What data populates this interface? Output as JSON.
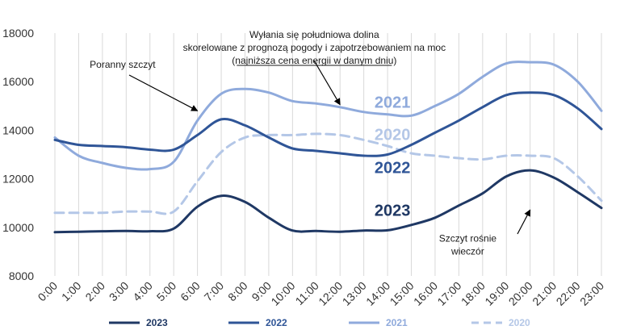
{
  "chart_data": {
    "type": "line",
    "x": [
      "0:00",
      "1:00",
      "2:00",
      "3:00",
      "4:00",
      "5:00",
      "6:00",
      "7:00",
      "8:00",
      "9:00",
      "10:00",
      "11:00",
      "12:00",
      "13:00",
      "14:00",
      "15:00",
      "16:00",
      "17:00",
      "18:00",
      "19:00",
      "20:00",
      "21:00",
      "22:00",
      "23:00"
    ],
    "ylim": [
      8000,
      18000
    ],
    "yticks": [
      8000,
      10000,
      12000,
      14000,
      16000,
      18000
    ],
    "ytick_labels": [
      "8000",
      "10000",
      "12000",
      "14000",
      "16000",
      "18000"
    ],
    "grid": "vertical",
    "legend": "bottom",
    "series": [
      {
        "name": "2023",
        "color": "#1f3864",
        "dash": false,
        "width": 3,
        "values": [
          9800,
          9820,
          9840,
          9850,
          9840,
          9950,
          10850,
          11300,
          11050,
          10400,
          9870,
          9850,
          9820,
          9870,
          9880,
          10100,
          10400,
          10900,
          11400,
          12100,
          12350,
          12050,
          11450,
          10800
        ]
      },
      {
        "name": "2022",
        "color": "#2f5597",
        "dash": false,
        "width": 3,
        "values": [
          13600,
          13400,
          13350,
          13300,
          13200,
          13200,
          13800,
          14450,
          14200,
          13700,
          13250,
          13150,
          13050,
          12950,
          13000,
          13400,
          13900,
          14400,
          14950,
          15450,
          15550,
          15450,
          14900,
          14050
        ]
      },
      {
        "name": "2021",
        "color": "#8faadc",
        "dash": false,
        "width": 3,
        "values": [
          13700,
          12950,
          12650,
          12450,
          12400,
          12700,
          14400,
          15500,
          15700,
          15550,
          15200,
          15100,
          14950,
          14750,
          14650,
          14600,
          15000,
          15500,
          16200,
          16750,
          16800,
          16700,
          16000,
          14800
        ]
      },
      {
        "name": "2020",
        "color": "#b4c7e7",
        "dash": true,
        "width": 3,
        "values": [
          10600,
          10600,
          10600,
          10650,
          10650,
          10650,
          11900,
          13100,
          13700,
          13800,
          13800,
          13850,
          13800,
          13600,
          13350,
          13050,
          12950,
          12850,
          12800,
          12950,
          12950,
          12850,
          12100,
          11100
        ]
      }
    ],
    "series_labels": [
      {
        "text": "2021",
        "color": "#8faadc",
        "x": "14:00",
        "y": 14920
      },
      {
        "text": "2020",
        "color": "#b4c7e7",
        "x": "14:00",
        "y": 13600
      },
      {
        "text": "2022",
        "color": "#2f5597",
        "x": "14:00",
        "y": 12230
      },
      {
        "text": "2023",
        "color": "#1f3864",
        "x": "14:00",
        "y": 10480
      }
    ],
    "annotations": [
      {
        "lines": [
          "Wyłania się południowa dolina",
          "skorelowane z prognozą pogody i zapotrzebowaniem na moc",
          "(najniższa cena energii w danym dniu)"
        ],
        "underline_last_inner": true,
        "text_x": "10:00",
        "text_y": 17400,
        "arrow_to": [
          "12:00",
          "15050"
        ]
      },
      {
        "lines": [
          "Poranny szczyt"
        ],
        "text_x": "2:00",
        "text_y": 16710,
        "arrow_to": [
          "6:00",
          "14800"
        ]
      },
      {
        "lines": [
          "Szczyt rośnie",
          "wieczór"
        ],
        "text_x": "17:00",
        "text_y": 9280,
        "arrow_to": [
          "20:00",
          "10720"
        ]
      }
    ]
  }
}
